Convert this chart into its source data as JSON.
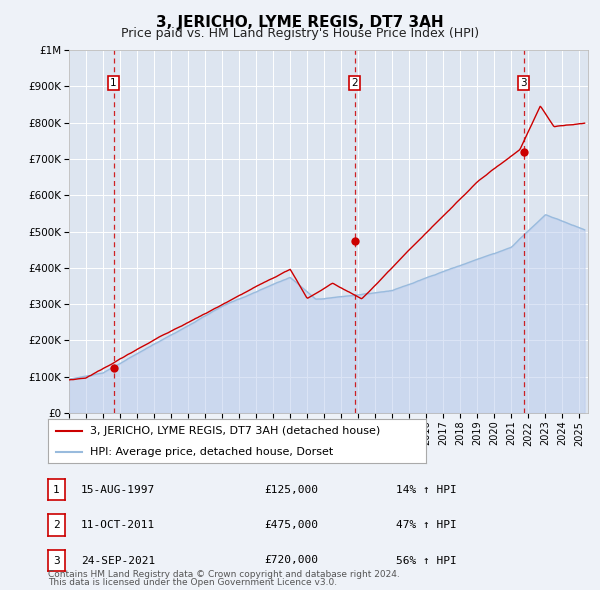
{
  "title": "3, JERICHO, LYME REGIS, DT7 3AH",
  "subtitle": "Price paid vs. HM Land Registry's House Price Index (HPI)",
  "ylim": [
    0,
    1000000
  ],
  "yticks": [
    0,
    100000,
    200000,
    300000,
    400000,
    500000,
    600000,
    700000,
    800000,
    900000,
    1000000
  ],
  "ytick_labels": [
    "£0",
    "£100K",
    "£200K",
    "£300K",
    "£400K",
    "£500K",
    "£600K",
    "£700K",
    "£800K",
    "£900K",
    "£1M"
  ],
  "xlim_start": 1995.0,
  "xlim_end": 2025.5,
  "background_color": "#eef2f8",
  "plot_bg_color": "#dde5f0",
  "grid_color": "#ffffff",
  "sale_line_color": "#cc0000",
  "hpi_line_color": "#99bbdd",
  "hpi_fill_color": "#bbccee",
  "sale_marker_color": "#cc0000",
  "vline_color": "#cc0000",
  "legend_label_sale": "3, JERICHO, LYME REGIS, DT7 3AH (detached house)",
  "legend_label_hpi": "HPI: Average price, detached house, Dorset",
  "transactions": [
    {
      "num": 1,
      "date_x": 1997.62,
      "price": 125000,
      "pct": "14%",
      "date_str": "15-AUG-1997",
      "price_str": "£125,000"
    },
    {
      "num": 2,
      "date_x": 2011.78,
      "price": 475000,
      "pct": "47%",
      "date_str": "11-OCT-2011",
      "price_str": "£475,000"
    },
    {
      "num": 3,
      "date_x": 2021.73,
      "price": 720000,
      "pct": "56%",
      "date_str": "24-SEP-2021",
      "price_str": "£720,000"
    }
  ],
  "footnote1": "Contains HM Land Registry data © Crown copyright and database right 2024.",
  "footnote2": "This data is licensed under the Open Government Licence v3.0.",
  "title_fontsize": 11,
  "subtitle_fontsize": 9,
  "tick_fontsize": 7.5,
  "legend_fontsize": 8,
  "table_fontsize": 8,
  "footnote_fontsize": 6.5
}
